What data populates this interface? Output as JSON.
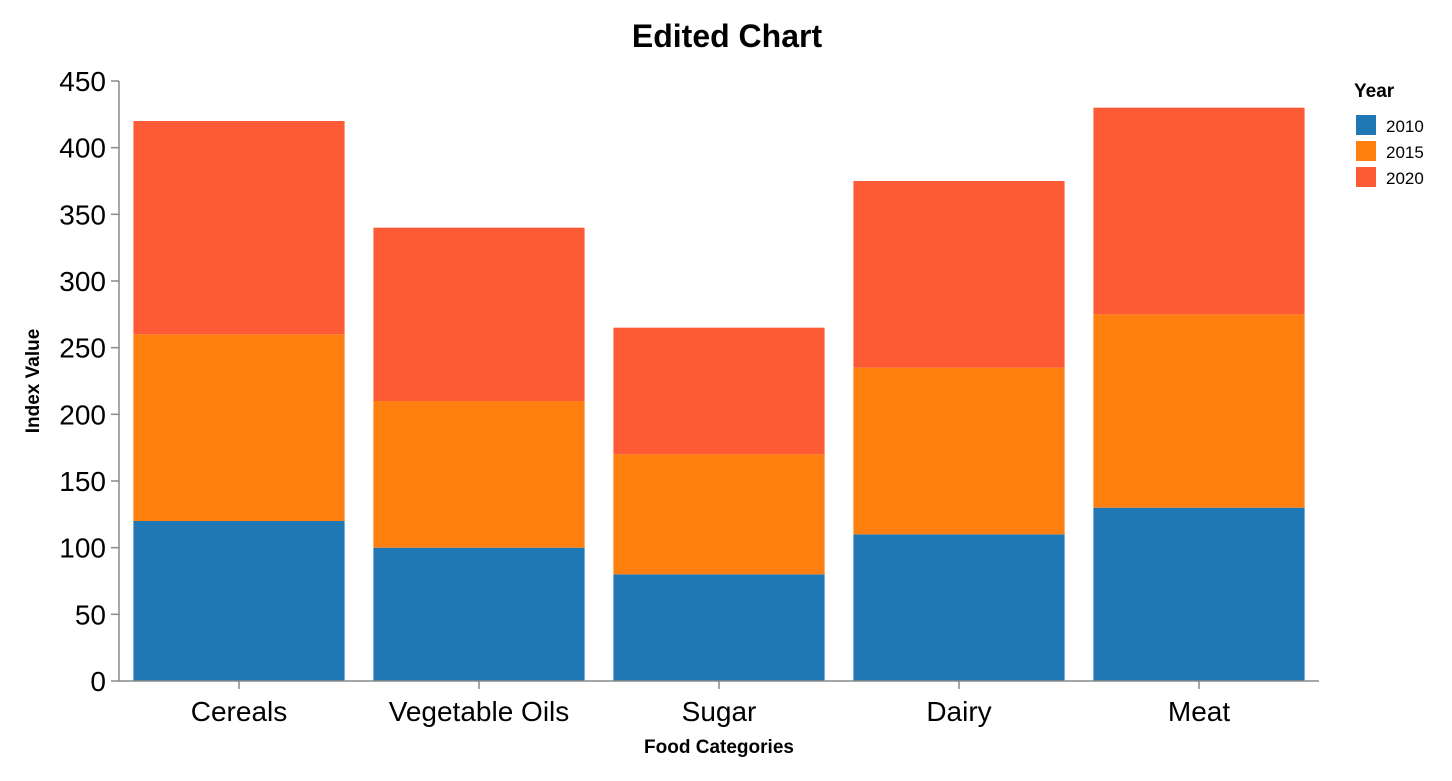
{
  "chart_data": {
    "type": "bar",
    "stacked": true,
    "title": "Edited Chart",
    "xlabel": "Food Categories",
    "ylabel": "Index Value",
    "ylim": [
      0,
      450
    ],
    "yticks": [
      "0",
      "50",
      "100",
      "150",
      "200",
      "250",
      "300",
      "350",
      "400",
      "450"
    ],
    "categories": [
      "Cereals",
      "Vegetable Oils",
      "Sugar",
      "Dairy",
      "Meat"
    ],
    "series": [
      {
        "name": "2010",
        "color": "#1f77b4",
        "values": [
          120,
          100,
          80,
          110,
          130
        ]
      },
      {
        "name": "2015",
        "color": "#ff7f0e",
        "values": [
          140,
          110,
          90,
          125,
          145
        ]
      },
      {
        "name": "2020",
        "color": "#ff5a36",
        "values": [
          160,
          130,
          95,
          140,
          155
        ]
      }
    ],
    "legend": {
      "title": "Year",
      "position": "top-right"
    },
    "grid": false
  }
}
